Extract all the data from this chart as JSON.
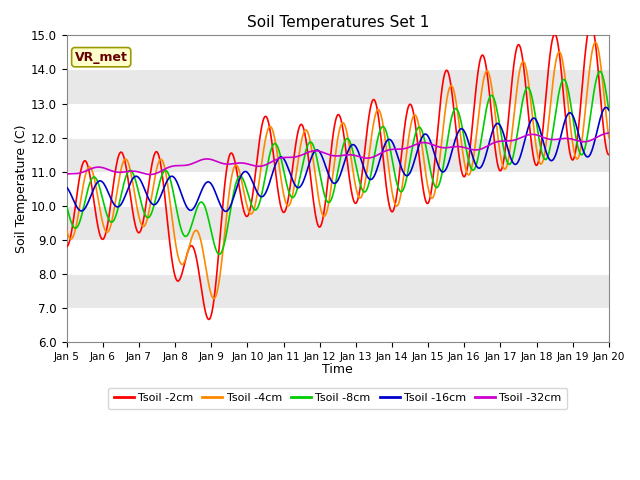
{
  "title": "Soil Temperatures Set 1",
  "xlabel": "Time",
  "ylabel": "Soil Temperature (C)",
  "ylim": [
    6.0,
    15.0
  ],
  "xlim": [
    0,
    360
  ],
  "yticks": [
    6.0,
    7.0,
    8.0,
    9.0,
    10.0,
    11.0,
    12.0,
    13.0,
    14.0,
    15.0
  ],
  "xtick_positions": [
    0,
    24,
    48,
    72,
    96,
    120,
    144,
    168,
    192,
    216,
    240,
    264,
    288,
    312,
    336,
    360
  ],
  "xtick_labels": [
    "Jan 5",
    "Jan 6",
    "Jan 7",
    "Jan 8",
    "Jan 9",
    "Jan 10",
    "Jan 11",
    "Jan 12",
    "Jan 13",
    "Jan 14",
    "Jan 15",
    "Jan 16",
    "Jan 17",
    "Jan 18",
    "Jan 19",
    "Jan 20"
  ],
  "line_colors": [
    "#ff0000",
    "#ff8800",
    "#00cc00",
    "#0000cc",
    "#cc00cc"
  ],
  "line_labels": [
    "Tsoil -2cm",
    "Tsoil -4cm",
    "Tsoil -8cm",
    "Tsoil -16cm",
    "Tsoil -32cm"
  ],
  "line_widths": [
    1.2,
    1.2,
    1.2,
    1.2,
    1.2
  ],
  "vr_met_label": "VR_met",
  "background_color": "#ffffff",
  "plot_bg_light": "#e8e8e8",
  "plot_bg_dark": "#d0d0d0",
  "annotation_box_color": "#ffffcc",
  "annotation_box_edge": "#999900",
  "annotation_text_color": "#660000"
}
